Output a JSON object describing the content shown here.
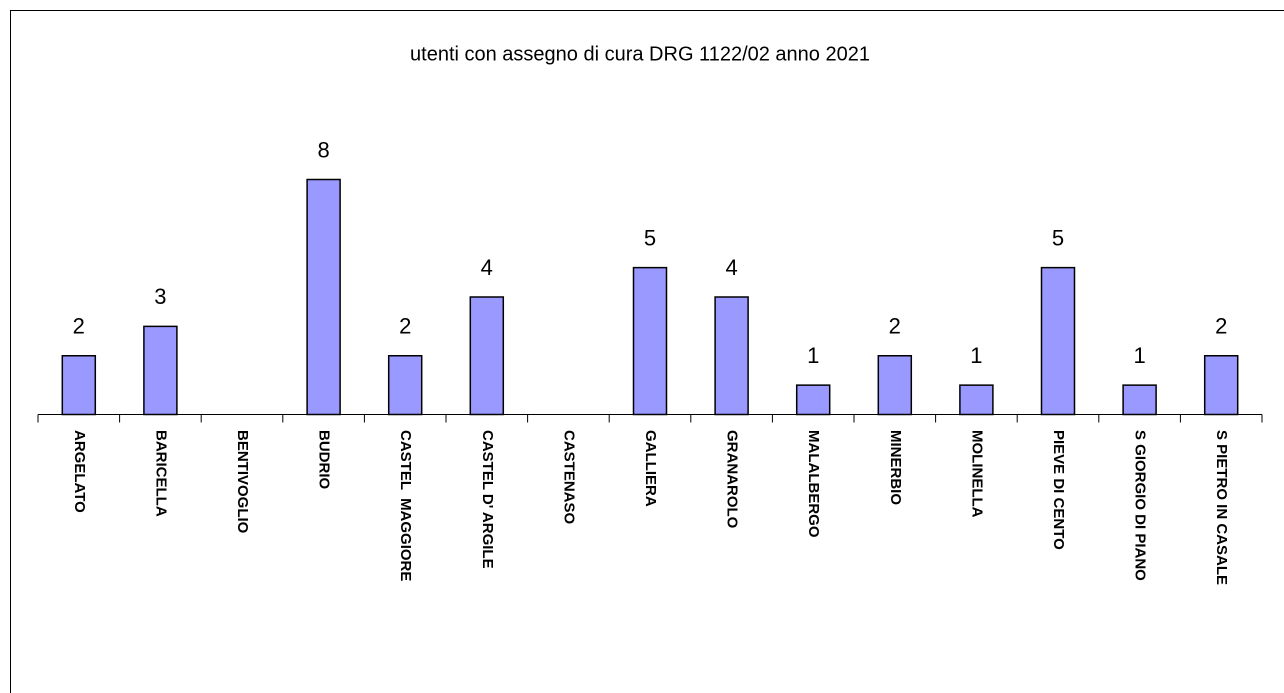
{
  "chart_data": {
    "type": "bar",
    "title": "utenti con assegno di cura DRG 1122/02 anno 2021",
    "categories": [
      "ARGELATO",
      "BARICELLA",
      "BENTIVOGLIO",
      "BUDRIO",
      "CASTEL  MAGGIORE",
      "CASTEL D' ARGILE",
      "CASTENASO",
      "GALLIERA",
      "GRANAROLO",
      "MALALBERGO",
      "MINERBIO",
      "MOLINELLA",
      "PIEVE DI CENTO",
      "S GIORGIO DI PIANO",
      "S PIETRO IN CASALE"
    ],
    "values": [
      2,
      3,
      null,
      8,
      2,
      4,
      null,
      5,
      4,
      1,
      2,
      1,
      5,
      1,
      2
    ],
    "color": "#9999ff"
  }
}
